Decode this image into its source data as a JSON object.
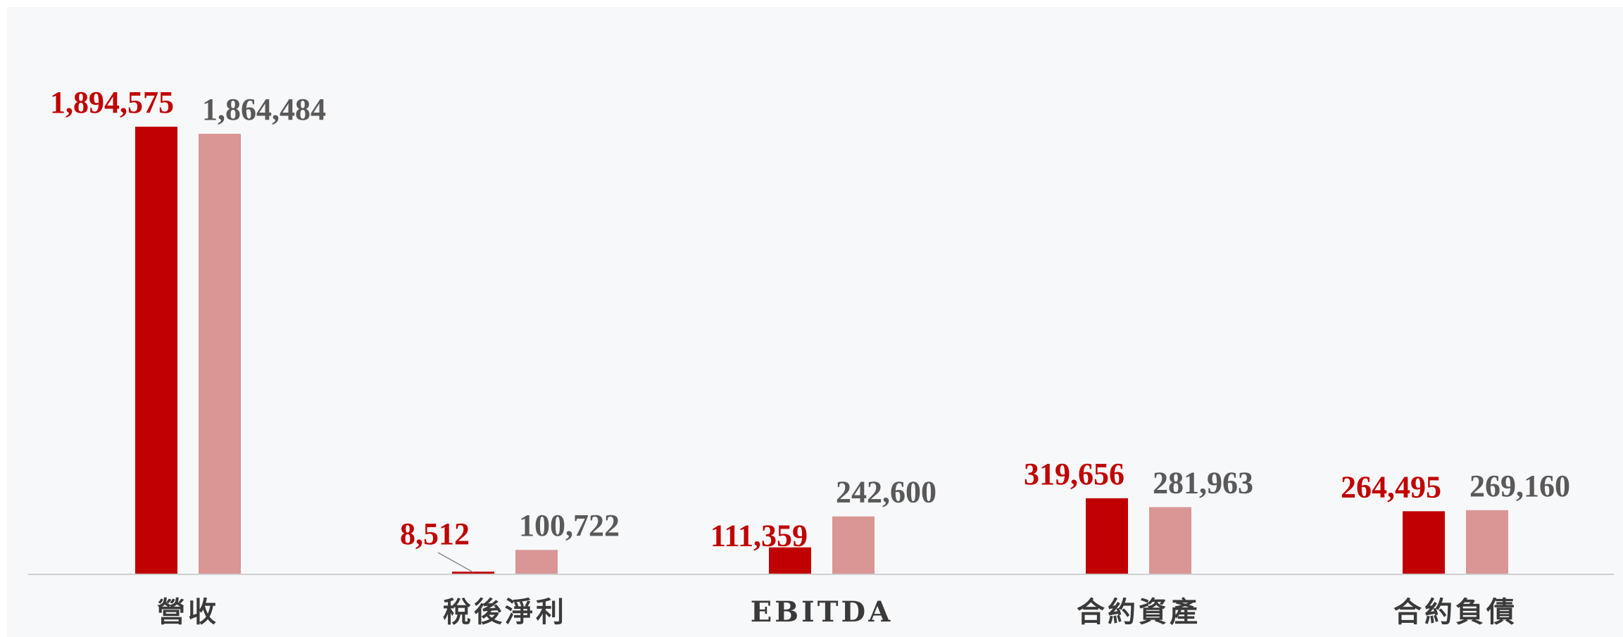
{
  "chart_data": {
    "type": "bar",
    "title": "",
    "xlabel": "",
    "ylabel": "",
    "grid": false,
    "legend": "none",
    "ylim": [
      0,
      2000000
    ],
    "categories": [
      "營收",
      "稅後淨利",
      "EBITDA",
      "合約資產",
      "合約負債"
    ],
    "series": [
      {
        "color": "#c00000",
        "label_color": "#c00000",
        "values": [
          1894575,
          8512,
          111359,
          319656,
          264495
        ],
        "labels": [
          "1,894,575",
          "8,512",
          "111,359",
          "319,656",
          "264,495"
        ]
      },
      {
        "color": "#d99694",
        "label_color": "#595959",
        "values": [
          1864484,
          100722,
          242600,
          281963,
          269160
        ],
        "labels": [
          "1,864,484",
          "100,722",
          "242,600",
          "281,963",
          "269,160"
        ]
      }
    ]
  }
}
